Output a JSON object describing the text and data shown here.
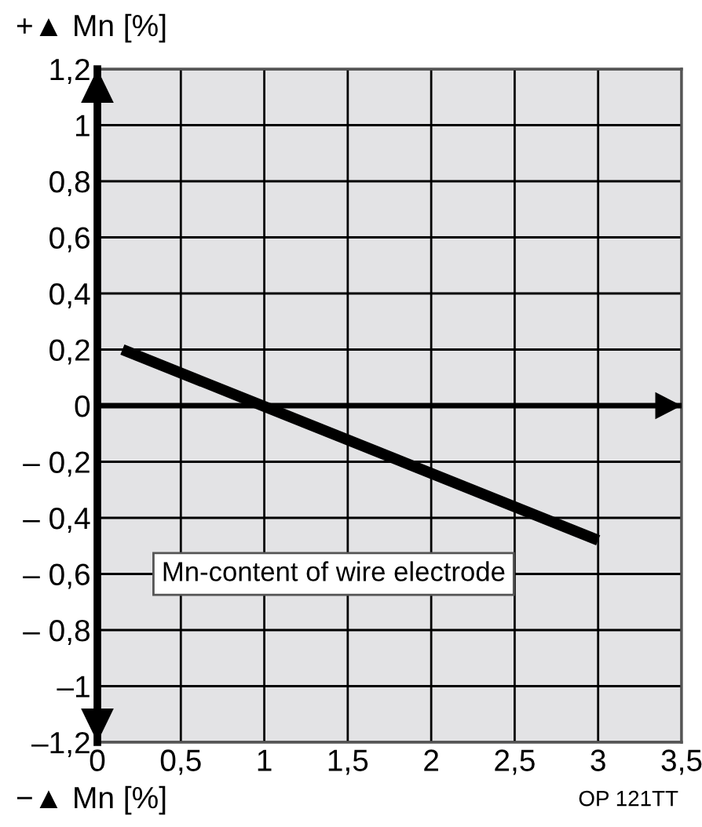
{
  "chart_data": {
    "type": "line",
    "ylabel": "+▲ Mn [%]",
    "xlabel": "−▲ Mn [%]",
    "x": [
      0.15,
      3.0
    ],
    "series": [
      {
        "color": "#000000",
        "values": [
          0.2,
          -0.48
        ]
      }
    ],
    "xlim": [
      0,
      3.5
    ],
    "ylim": [
      -1.2,
      1.2
    ],
    "xticks": [
      0,
      {
        "value": 0.5,
        "label": "0,5"
      },
      1,
      {
        "value": 1.5,
        "label": "1,5"
      },
      2,
      {
        "value": 2.5,
        "label": "2,5"
      },
      3,
      {
        "value": 3.5,
        "label": "3,5"
      }
    ],
    "yticks": [
      {
        "value": -1.2,
        "label": "–1,2"
      },
      {
        "value": -1,
        "label": "–1"
      },
      {
        "value": -0.8,
        "label": "– 0,8"
      },
      {
        "value": -0.6,
        "label": "– 0,6"
      },
      {
        "value": -0.4,
        "label": "– 0,4"
      },
      {
        "value": -0.2,
        "label": "– 0,2"
      },
      0,
      {
        "value": 0.2,
        "label": "0,2"
      },
      {
        "value": 0.4,
        "label": "0,4"
      },
      {
        "value": 0.6,
        "label": "0,6"
      },
      {
        "value": 0.8,
        "label": "0,8"
      },
      1,
      {
        "value": 1.2,
        "label": "1,2"
      }
    ],
    "ref_lines": [
      {
        "axis": "y",
        "value": 0,
        "color": "#000000"
      }
    ],
    "grid": true,
    "marker": "none",
    "line_style": "solid",
    "annotations": [
      "Mn-content of wire electrode",
      "OP 121TT"
    ]
  }
}
